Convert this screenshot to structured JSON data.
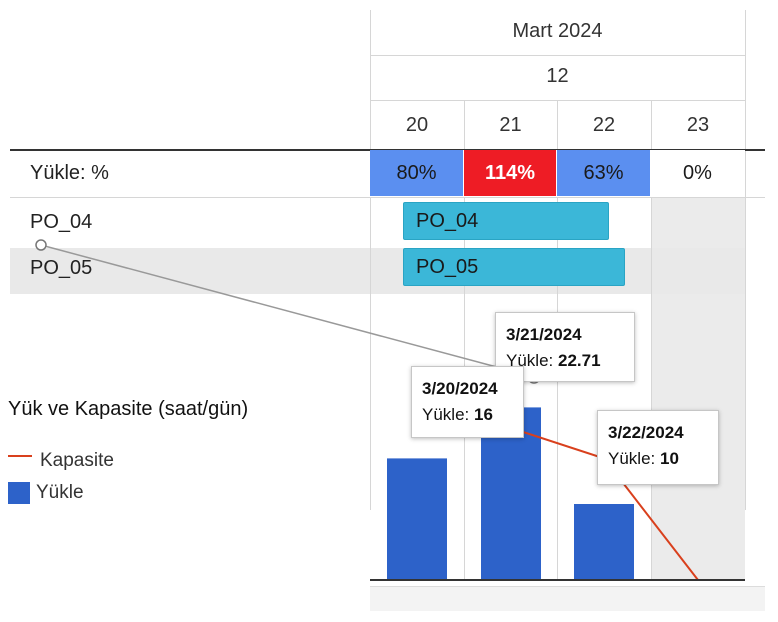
{
  "header": {
    "month": "Mart 2024",
    "week": "12",
    "days": [
      "20",
      "21",
      "22",
      "23"
    ]
  },
  "load_row": {
    "label": "Yükle: %",
    "cells": [
      {
        "text": "80%",
        "bg": "#5b8ff0",
        "color": "#1a1a1a",
        "bold": false
      },
      {
        "text": "114%",
        "bg": "#ee1c25",
        "color": "#ffffff",
        "bold": true
      },
      {
        "text": "63%",
        "bg": "#5b8ff0",
        "color": "#1a1a1a",
        "bold": false
      },
      {
        "text": "0%",
        "bg": "#ffffff",
        "color": "#1a1a1a",
        "bold": false
      }
    ]
  },
  "tasks": [
    {
      "name": "PO_04",
      "bar_label": "PO_04"
    },
    {
      "name": "PO_05",
      "bar_label": "PO_05"
    }
  ],
  "legend": {
    "title": "Yük ve Kapasite (saat/gün)",
    "items": [
      {
        "label": "Kapasite",
        "color": "#d9401d",
        "kind": "line"
      },
      {
        "label": "Yükle",
        "color": "#2d62c9",
        "kind": "square"
      }
    ]
  },
  "tooltips": [
    {
      "date": "3/20/2024",
      "label": "Yükle:",
      "value": "16"
    },
    {
      "date": "3/21/2024",
      "label": "Yükle:",
      "value": "22.71"
    },
    {
      "date": "3/22/2024",
      "label": "Yükle:",
      "value": "10"
    }
  ],
  "chart_data": {
    "type": "bar",
    "categories": [
      "3/20/2024",
      "3/21/2024",
      "3/22/2024",
      "3/23/2024"
    ],
    "series": [
      {
        "name": "Yükle",
        "values": [
          16,
          22.71,
          10,
          0
        ]
      },
      {
        "name": "Kapasite",
        "values": [
          20,
          20,
          16,
          0
        ]
      }
    ],
    "colors": {
      "load": "#2d62c9",
      "capacity": "#d9401d"
    }
  }
}
